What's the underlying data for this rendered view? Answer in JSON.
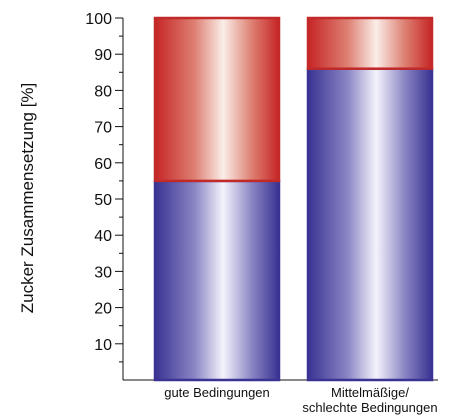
{
  "chart_data": {
    "type": "bar",
    "stacked": true,
    "ylabel": "Zucker Zusammensetzung [%]",
    "ylim": [
      0,
      100
    ],
    "yticks": [
      10,
      20,
      30,
      40,
      50,
      60,
      70,
      80,
      90,
      100
    ],
    "categories": [
      {
        "lines": [
          "gute Bedingungen"
        ]
      },
      {
        "lines": [
          "Mittelmäßige/",
          "schlechte Bedingungen"
        ]
      }
    ],
    "series": [
      {
        "values": [
          55,
          86
        ],
        "color": "#3b3394"
      },
      {
        "values": [
          45,
          14
        ],
        "color": "#c22a2a"
      }
    ],
    "grid": false,
    "legend": "none"
  }
}
